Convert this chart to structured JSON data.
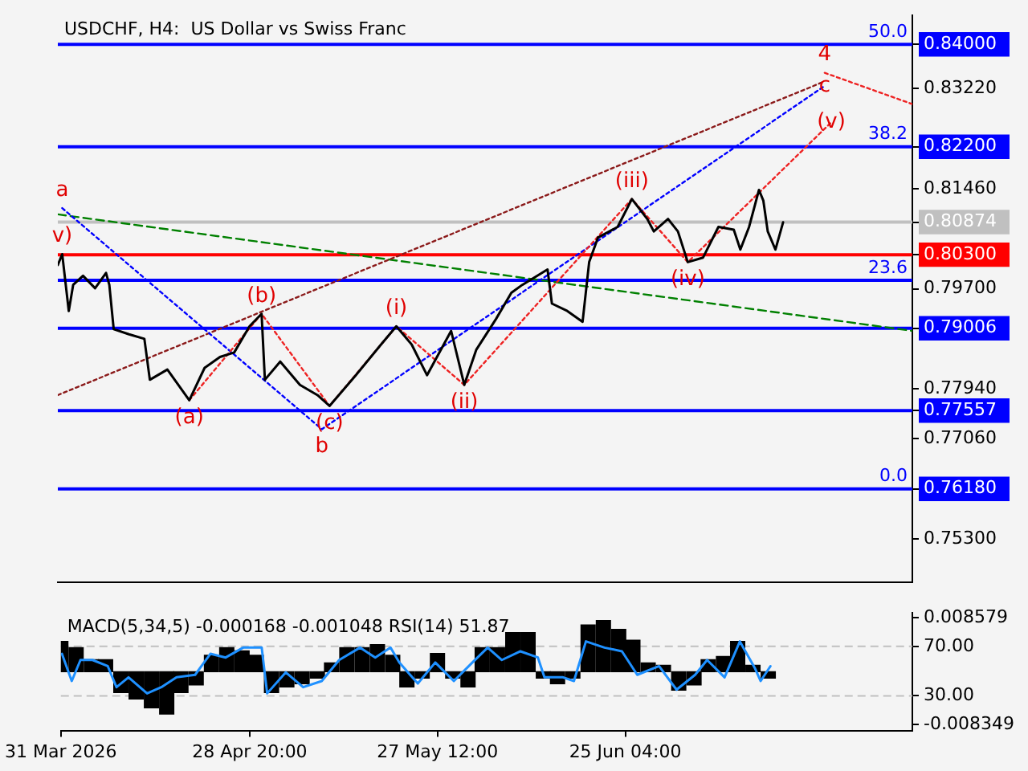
{
  "chart_data": [
    {
      "type": "line",
      "title": "USDCHF, H4:  US Dollar vs Swiss Franc",
      "xlim": [
        "2026-03-31",
        "2026-08-08"
      ],
      "xticks": [
        {
          "value": "2026-03-31",
          "label": null
        },
        {
          "value": "2026-04-28T20:00",
          "label": null
        },
        {
          "value": "2026-05-27T12:00",
          "label": null
        },
        {
          "value": "2026-06-25T04:00",
          "label": null
        }
      ],
      "ylim": [
        0.7454,
        0.8451
      ],
      "yticks": [
        {
          "value": 0.84,
          "label": "0.84000"
        },
        {
          "value": 0.8322,
          "label": "0.83220"
        },
        {
          "value": 0.822,
          "label": "0.82200"
        },
        {
          "value": 0.8146,
          "label": "0.81460"
        },
        {
          "value": 0.80874,
          "label": "0.80874"
        },
        {
          "value": 0.803,
          "label": "0.80300"
        },
        {
          "value": 0.797,
          "label": "0.79700"
        },
        {
          "value": 0.79006,
          "label": "0.79006"
        },
        {
          "value": 0.7794,
          "label": "0.77940"
        },
        {
          "value": 0.77557,
          "label": "0.77557"
        },
        {
          "value": 0.7706,
          "label": "0.77060"
        },
        {
          "value": 0.7618,
          "label": "0.76180"
        },
        {
          "value": 0.753,
          "label": "0.75300"
        }
      ],
      "tick_labels": "y",
      "grid": false,
      "legend": false,
      "series": [
        {
          "color": "#000000",
          "x": [
            "2026-03-31T00:00",
            "2026-03-31T16:00",
            "2026-04-01T16:00",
            "2026-04-02T08:00",
            "2026-04-03T20:00",
            "2026-04-05T16:00",
            "2026-04-07T08:00",
            "2026-04-07T20:00",
            "2026-04-08T12:00",
            "2026-04-10T20:00",
            "2026-04-13T04:00",
            "2026-04-14T00:00",
            "2026-04-16T16:00",
            "2026-04-20T00:00",
            "2026-04-22T08:00",
            "2026-04-24T16:00",
            "2026-04-26T20:00",
            "2026-04-29T04:00",
            "2026-05-01T00:00",
            "2026-05-01T12:00",
            "2026-05-03T20:00",
            "2026-05-06T20:00",
            "2026-05-09T12:00",
            "2026-05-11T08:00",
            "2026-05-15T08:00",
            "2026-05-19T04:00",
            "2026-05-21T12:00",
            "2026-05-23T20:00",
            "2026-05-26T04:00",
            "2026-05-29T20:00",
            "2026-05-31T20:00",
            "2026-06-02T16:00",
            "2026-06-05T16:00",
            "2026-06-08T00:00",
            "2026-06-09T16:00",
            "2026-06-13T12:00",
            "2026-06-14T04:00",
            "2026-06-16T12:00",
            "2026-06-18T20:00",
            "2026-06-19T20:00",
            "2026-06-21T04:00",
            "2026-06-24T04:00",
            "2026-06-26T08:00",
            "2026-06-28T16:00",
            "2026-06-29T16:00",
            "2026-07-01T20:00",
            "2026-07-03T08:00",
            "2026-07-04T20:00",
            "2026-07-07T04:00",
            "2026-07-09T12:00",
            "2026-07-11T20:00",
            "2026-07-12T20:00",
            "2026-07-14T04:00",
            "2026-07-15T16:00",
            "2026-07-16T08:00",
            "2026-07-17T00:00",
            "2026-07-18T04:00",
            "2026-07-19T08:00"
          ],
          "values": [
            0.8012,
            0.8031,
            0.7931,
            0.7977,
            0.7993,
            0.7971,
            0.7998,
            0.7977,
            0.7899,
            0.789,
            0.7882,
            0.781,
            0.7828,
            0.7774,
            0.7831,
            0.785,
            0.7858,
            0.7904,
            0.7926,
            0.781,
            0.7842,
            0.7801,
            0.7783,
            0.7764,
            0.7818,
            0.7872,
            0.7904,
            0.7872,
            0.7818,
            0.7896,
            0.7801,
            0.7863,
            0.7917,
            0.7963,
            0.7977,
            0.8004,
            0.7944,
            0.7931,
            0.7912,
            0.8017,
            0.806,
            0.8079,
            0.8128,
            0.8093,
            0.8071,
            0.8093,
            0.8071,
            0.8017,
            0.8025,
            0.8079,
            0.8074,
            0.8039,
            0.8079,
            0.8144,
            0.8125,
            0.8071,
            0.8039,
            0.8087
          ]
        },
        {
          "type": "line",
          "color": "#ee2222",
          "line_style": "dotted",
          "x": [
            "2026-04-20T00:00",
            "2026-05-01T00:00",
            "2026-05-11T08:00",
            "2026-05-21T12:00",
            "2026-05-31T20:00",
            "2026-06-26T08:00",
            "2026-07-04T20:00",
            "2026-07-26T16:00"
          ],
          "values": [
            0.7774,
            0.7926,
            0.7764,
            0.7904,
            0.7801,
            0.8128,
            0.8017,
            0.8263
          ]
        },
        {
          "type": "line",
          "color": "#ee2222",
          "line_style": "dotted",
          "x": [
            "2026-07-25T16:00",
            "2026-08-08"
          ],
          "values": [
            0.835,
            0.8295
          ]
        },
        {
          "type": "line",
          "color": "#0000ff",
          "line_style": "dotted",
          "x": [
            "2026-03-31T16:00",
            "2026-05-10T04:00",
            "2026-07-25T16:00"
          ],
          "values": [
            0.8112,
            0.7723,
            0.8327
          ]
        },
        {
          "type": "line",
          "color": "#8b1a1a",
          "line_style": "dotted",
          "x": [
            "2026-03-31",
            "2026-07-25T16:00"
          ],
          "values": [
            0.7783,
            0.8335
          ]
        },
        {
          "type": "line",
          "color": "#008000",
          "line_style": "dashed",
          "x": [
            "2026-03-31",
            "2026-08-08"
          ],
          "values": [
            0.8101,
            0.7896
          ]
        }
      ],
      "ref_lines": [
        {
          "axis": "y",
          "value": 0.84,
          "color": "#0000ff"
        },
        {
          "axis": "y",
          "value": 0.822,
          "color": "#0000ff"
        },
        {
          "axis": "y",
          "value": 0.80874,
          "color": "#c0c0c0"
        },
        {
          "axis": "y",
          "value": 0.803,
          "color": "#ff0000"
        },
        {
          "axis": "y",
          "value": 0.7985,
          "color": "#0000ff"
        },
        {
          "axis": "y",
          "value": 0.79006,
          "color": "#0000ff"
        },
        {
          "axis": "y",
          "value": 0.77557,
          "color": "#0000ff"
        },
        {
          "axis": "y",
          "value": 0.7618,
          "color": "#0000ff"
        }
      ],
      "annotations": [
        {
          "text": "50.0",
          "y": 0.84
        },
        {
          "text": "38.2",
          "y": 0.822
        },
        {
          "text": "23.6",
          "y": 0.7985
        },
        {
          "text": "0.0",
          "y": 0.7618
        },
        {
          "text": "a",
          "x": "2026-03-31T16:00",
          "y": 0.8112
        },
        {
          "text": "v)",
          "x": "2026-03-31T16:00",
          "y": 0.8031
        },
        {
          "text": "b",
          "x": "2026-05-10T04:00",
          "y": 0.7723
        },
        {
          "text": "c",
          "x": "2026-07-25T16:00",
          "y": 0.8327
        },
        {
          "text": "4",
          "x": "2026-07-25T16:00",
          "y": 0.835
        },
        {
          "text": "(a)",
          "x": "2026-04-20T00:00",
          "y": 0.7774
        },
        {
          "text": "(b)",
          "x": "2026-05-01T00:00",
          "y": 0.7926
        },
        {
          "text": "(c)",
          "x": "2026-05-11T08:00",
          "y": 0.7764
        },
        {
          "text": "(i)",
          "x": "2026-05-21T12:00",
          "y": 0.7904
        },
        {
          "text": "(ii)",
          "x": "2026-05-31T20:00",
          "y": 0.7801
        },
        {
          "text": "(iii)",
          "x": "2026-06-26T08:00",
          "y": 0.8128
        },
        {
          "text": "(iv)",
          "x": "2026-07-04T20:00",
          "y": 0.8017
        },
        {
          "text": "(v)",
          "x": "2026-07-26T16:00",
          "y": 0.8263
        }
      ]
    },
    {
      "type": "bar",
      "title": "MACD(5,34,5) -0.000168 -0.001048 RSI(14) 51.87",
      "xlim": [
        "2026-03-31",
        "2026-08-08"
      ],
      "xticks": [
        {
          "value": "2026-03-31",
          "label": "31 Mar 2026"
        },
        {
          "value": "2026-04-28T20:00",
          "label": "28 Apr 20:00"
        },
        {
          "value": "2026-05-27T12:00",
          "label": "27 May 12:00"
        },
        {
          "value": "2026-06-25T04:00",
          "label": "25 Jun 04:00"
        }
      ],
      "ylim": [
        -0.0093,
        0.0093
      ],
      "yticks": [
        0.008579,
        -0.008349
      ],
      "y2lim": [
        2,
        97
      ],
      "y2ticks": [
        {
          "value": 70,
          "label": "70.00"
        },
        {
          "value": 30,
          "label": "30.00"
        }
      ],
      "grid": false,
      "legend": false,
      "series": [
        {
          "color": "#000000",
          "x": [
            "2026-03-31T00:00",
            "2026-04-02T08:00",
            "2026-04-04T16:00",
            "2026-04-06T20:00",
            "2026-04-09T04:00",
            "2026-04-11T12:00",
            "2026-04-13T20:00",
            "2026-04-16T04:00",
            "2026-04-18T08:00",
            "2026-04-20T16:00",
            "2026-04-23T00:00",
            "2026-04-25T08:00",
            "2026-04-27T16:00",
            "2026-04-29T20:00",
            "2026-05-02T04:00",
            "2026-05-04T12:00",
            "2026-05-06T20:00",
            "2026-05-09T04:00",
            "2026-05-11T08:00",
            "2026-05-13T16:00",
            "2026-05-16T00:00",
            "2026-05-18T08:00",
            "2026-05-20T16:00",
            "2026-05-22T20:00",
            "2026-05-25T04:00",
            "2026-05-27T12:00",
            "2026-05-29T20:00",
            "2026-06-01T04:00",
            "2026-06-03T08:00",
            "2026-06-05T16:00",
            "2026-06-08T00:00",
            "2026-06-10T08:00",
            "2026-06-12T16:00",
            "2026-06-14T20:00",
            "2026-06-17T04:00",
            "2026-06-19T12:00",
            "2026-06-21T20:00",
            "2026-06-24T04:00",
            "2026-06-26T08:00",
            "2026-06-28T16:00",
            "2026-07-01T00:00",
            "2026-07-03T08:00",
            "2026-07-05T16:00",
            "2026-07-07T20:00",
            "2026-07-10T04:00",
            "2026-07-12T08:00",
            "2026-07-14T16:00",
            "2026-07-17T00:00"
          ],
          "values": [
            0.0048,
            0.0038,
            0.0019,
            0.0019,
            -0.0033,
            -0.0043,
            -0.0057,
            -0.0067,
            -0.0033,
            -0.0021,
            0.0026,
            0.0038,
            0.0033,
            0.0026,
            -0.0033,
            -0.0024,
            -0.0019,
            -0.001,
            0.0014,
            0.0038,
            0.0038,
            0.0043,
            0.0026,
            -0.0024,
            -0.001,
            0.0029,
            -0.001,
            -0.0024,
            0.0038,
            0.0038,
            0.0062,
            0.0062,
            -0.001,
            -0.0019,
            -0.001,
            0.0074,
            0.0081,
            0.0067,
            0.005,
            0.0014,
            0.001,
            -0.0029,
            -0.0021,
            0.0019,
            0.0024,
            0.0048,
            0.001,
            -0.001
          ]
        },
        {
          "type": "line",
          "axis": "y2",
          "color": "#1e90ff",
          "x": [
            "2026-03-31T04:00",
            "2026-04-01T16:00",
            "2026-04-03T00:00",
            "2026-04-04T20:00",
            "2026-04-07T04:00",
            "2026-04-08T12:00",
            "2026-04-10T08:00",
            "2026-04-13T04:00",
            "2026-04-15T08:00",
            "2026-04-17T16:00",
            "2026-04-20T12:00",
            "2026-04-22T20:00",
            "2026-04-25T04:00",
            "2026-04-27T20:00",
            "2026-04-30T16:00",
            "2026-05-01T12:00",
            "2026-05-04T08:00",
            "2026-05-07T00:00",
            "2026-05-09T20:00",
            "2026-05-12T12:00",
            "2026-05-15T16:00",
            "2026-05-18T00:00",
            "2026-05-20T08:00",
            "2026-05-21T16:00",
            "2026-05-24T12:00",
            "2026-05-27T04:00",
            "2026-05-30T00:00",
            "2026-06-01T20:00",
            "2026-06-04T04:00",
            "2026-06-06T08:00",
            "2026-06-09T04:00",
            "2026-06-11T20:00",
            "2026-06-12T20:00",
            "2026-06-15T16:00",
            "2026-06-17T08:00",
            "2026-06-19T04:00",
            "2026-06-22T00:00",
            "2026-06-24T16:00",
            "2026-06-27T00:00",
            "2026-06-30T08:00",
            "2026-07-03T00:00",
            "2026-07-05T20:00",
            "2026-07-07T16:00",
            "2026-07-10T08:00",
            "2026-07-12T16:00",
            "2026-07-15T00:00",
            "2026-07-15T20:00",
            "2026-07-17T08:00"
          ],
          "values": [
            64,
            42,
            59,
            59,
            54,
            37,
            45,
            32,
            37,
            45,
            47,
            64,
            61,
            69,
            69,
            32,
            49,
            37,
            42,
            59,
            69,
            61,
            69,
            57,
            40,
            57,
            42,
            57,
            69,
            59,
            66,
            61,
            45,
            45,
            42,
            74,
            69,
            66,
            47,
            54,
            35,
            47,
            59,
            45,
            74,
            52,
            42,
            54
          ]
        }
      ],
      "ref_lines": [
        {
          "axis": "y2",
          "value": 70,
          "color": "#c0c0c0",
          "line_style": "dashed"
        },
        {
          "axis": "y2",
          "value": 30,
          "color": "#c0c0c0",
          "line_style": "dashed"
        }
      ]
    }
  ]
}
